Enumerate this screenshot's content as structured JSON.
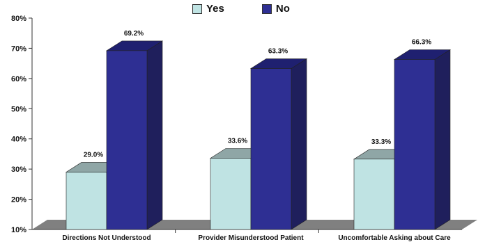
{
  "chart_data": {
    "type": "bar",
    "categories": [
      "Directions Not Understood",
      "Provider Misunderstood Patient",
      "Uncomfortable Asking about Care"
    ],
    "series": [
      {
        "name": "Yes",
        "values": [
          29.0,
          33.6,
          33.3
        ],
        "labels": [
          "29.0%",
          "33.6%",
          "33.3%"
        ]
      },
      {
        "name": "No",
        "values": [
          69.2,
          63.3,
          66.3
        ],
        "labels": [
          "69.2%",
          "63.3%",
          "66.3%"
        ]
      }
    ],
    "yticks": [
      10,
      20,
      30,
      40,
      50,
      60,
      70,
      80
    ],
    "ytick_labels": [
      "10%",
      "20%",
      "30%",
      "40%",
      "50%",
      "60%",
      "70%",
      "80%"
    ],
    "ylim": [
      10,
      80
    ],
    "legend_position": "top-center",
    "grid": false,
    "colors": {
      "yes_face": "#bfe3e3",
      "yes_side": "#8fb1b1",
      "yes_top": "#8fa6a6",
      "no_face": "#2e2f93",
      "no_side": "#1f1f5c",
      "no_top": "#1f2070",
      "floor": "#808080"
    }
  }
}
